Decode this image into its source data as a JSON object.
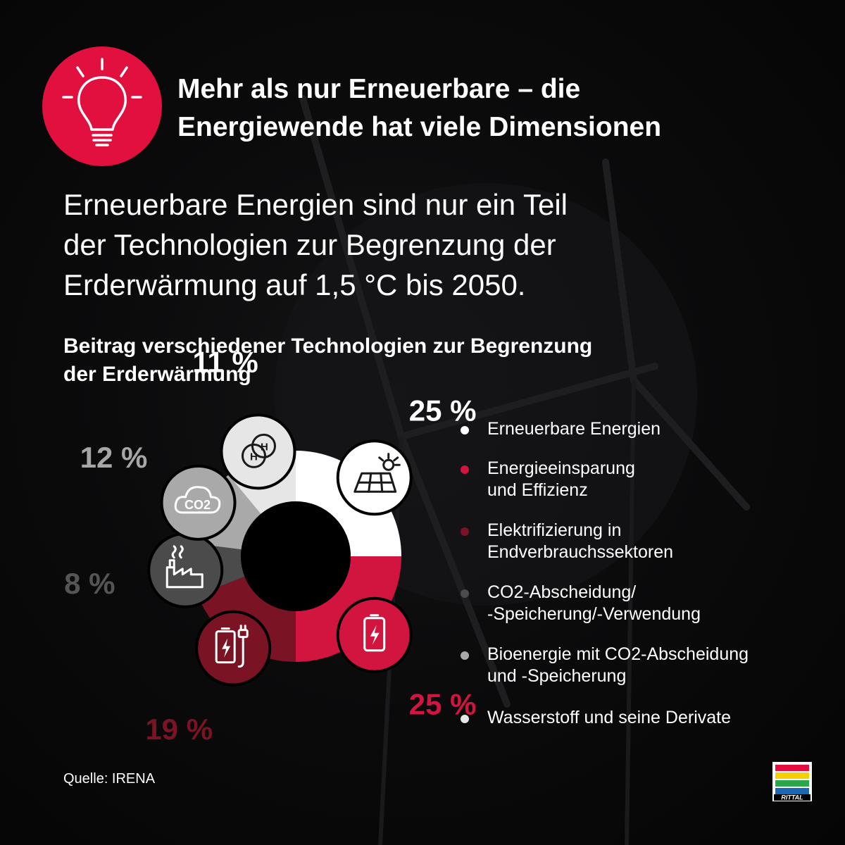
{
  "header": {
    "title_lines": [
      "Mehr als nur Erneuerbare – die",
      "Energiewende hat viele Dimensionen"
    ],
    "icon": "lightbulb-icon",
    "badge_color": "#e2103f"
  },
  "intro": {
    "lines": [
      "Erneuerbare Energien sind nur ein Teil",
      "der Technologien zur Begrenzung der",
      "Erderwärmung auf 1,5 °C bis 2050."
    ]
  },
  "chart_data": {
    "type": "pie",
    "style": "donut",
    "title_lines": [
      "Beitrag verschiedener Technologien zur Begrenzung",
      "der Erderwärmung"
    ],
    "unit": "%",
    "series": [
      {
        "label_lines": [
          "Erneuerbare Energien"
        ],
        "value": 25,
        "value_label": "25 %",
        "color": "#ffffff",
        "label_color": "#ffffff",
        "icon": "solar-panel-icon"
      },
      {
        "label_lines": [
          "Energieeinsparung",
          "und Effizienz"
        ],
        "value": 25,
        "value_label": "25 %",
        "color": "#d1153f",
        "label_color": "#d1153f",
        "icon": "battery-icon"
      },
      {
        "label_lines": [
          "Elektrifizierung in",
          "Endverbrauchssektoren"
        ],
        "value": 19,
        "value_label": "19 %",
        "color": "#7a1424",
        "label_color": "#7a1424",
        "icon": "battery-charging-plug-icon"
      },
      {
        "label_lines": [
          "CO2-Abscheidung/",
          "-Speicherung/-Verwendung"
        ],
        "value": 8,
        "value_label": "8 %",
        "color": "#4b4b4b",
        "label_color": "#555555",
        "icon": "factory-icon"
      },
      {
        "label_lines": [
          "Bioenergie mit CO2-Abscheidung",
          "und  -Speicherung"
        ],
        "value": 12,
        "value_label": "12 %",
        "color": "#a9a9a9",
        "label_color": "#a6a6a6",
        "icon": "co2-cloud-icon",
        "icon_text": "CO2"
      },
      {
        "label_lines": [
          "Wasserstoff und seine Derivate"
        ],
        "value": 11,
        "value_label": "11 %",
        "color": "#e6e6e6",
        "label_color": "#ffffff",
        "icon": "hydrogen-icon",
        "icon_text": "H"
      }
    ],
    "legend_placement": "right"
  },
  "footer": {
    "source": "Quelle: IRENA",
    "logo": {
      "text": "RITTAL",
      "icon": "rittal-logo",
      "stripe_colors": [
        "#e2103f",
        "#f4d000",
        "#2ca54b",
        "#1a68b3"
      ]
    }
  }
}
